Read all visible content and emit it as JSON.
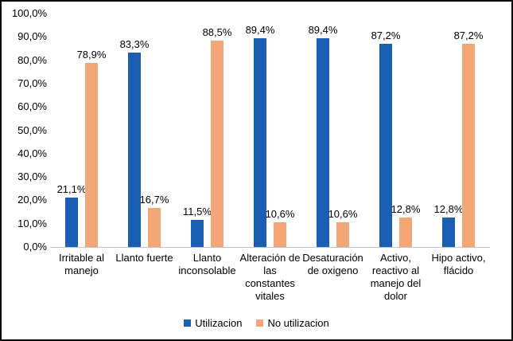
{
  "window": {
    "background": "#FFFFFF",
    "border_color": "#000000"
  },
  "colors": {
    "series": [
      "#1A5FB4",
      "#F3A678"
    ],
    "axis_line": "#C6C6C6",
    "text": "#000000"
  },
  "legend": [
    {
      "name": "Utilizacion",
      "color": "#1A5FB4"
    },
    {
      "name": "No utilizacion",
      "color": "#F3A678"
    }
  ],
  "chart_data": {
    "type": "bar",
    "title": "",
    "categories": [
      "Irritable al manejo",
      "Llanto fuerte",
      "Llanto inconsolable",
      "Alteración de las constantes vitales",
      "Desaturación de oxigeno",
      "Activo, reactivo al manejo del dolor",
      "Hipo activo, flácido"
    ],
    "categories_wrapped": [
      "Irritable al\nmanejo",
      "Llanto fuerte",
      "Llanto\ninconsolable",
      "Alteración de\nlas constantes\nvitales",
      "Desaturación\nde oxigeno",
      "Activo,\nreactivo al\nmanejo del\ndolor",
      "Hipo activo,\nflácido"
    ],
    "series": [
      {
        "name": "Utilizacion",
        "color": "#1A5FB4",
        "values": [
          21.1,
          83.3,
          11.5,
          89.4,
          89.4,
          87.2,
          12.8
        ],
        "labels": [
          "21,1%",
          "83,3%",
          "11,5%",
          "89,4%",
          "89,4%",
          "87,2%",
          "12,8%"
        ]
      },
      {
        "name": "No utilizacion",
        "color": "#F3A678",
        "values": [
          78.9,
          16.7,
          88.5,
          10.6,
          10.6,
          12.8,
          87.2
        ],
        "labels": [
          "78,9%",
          "16,7%",
          "88,5%",
          "10,6%",
          "10,6%",
          "12,8%",
          "87,2%"
        ]
      }
    ],
    "ylim": [
      0,
      100
    ],
    "yticks": [
      "100,0%",
      "90,0%",
      "80,0%",
      "70,0%",
      "60,0%",
      "50,0%",
      "40,0%",
      "30,0%",
      "20,0%",
      "10,0%",
      "0,0%"
    ],
    "grid": false,
    "legend_position": "bottom"
  }
}
